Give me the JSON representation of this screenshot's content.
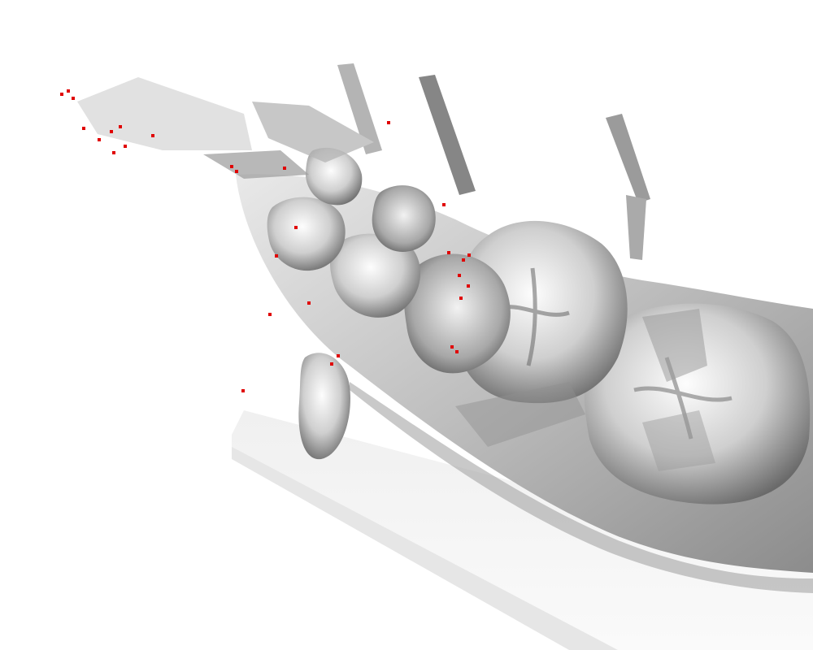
{
  "scene": {
    "background_color": "#ffffff",
    "mesh_colors": {
      "light": "#f4f4f4",
      "mid": "#c9c9c9",
      "dark": "#6f6f6f",
      "shadow": "#3e3e3e"
    },
    "outlier_point_color": "#e00000",
    "point_cloud_color": "#8a8a8a"
  }
}
